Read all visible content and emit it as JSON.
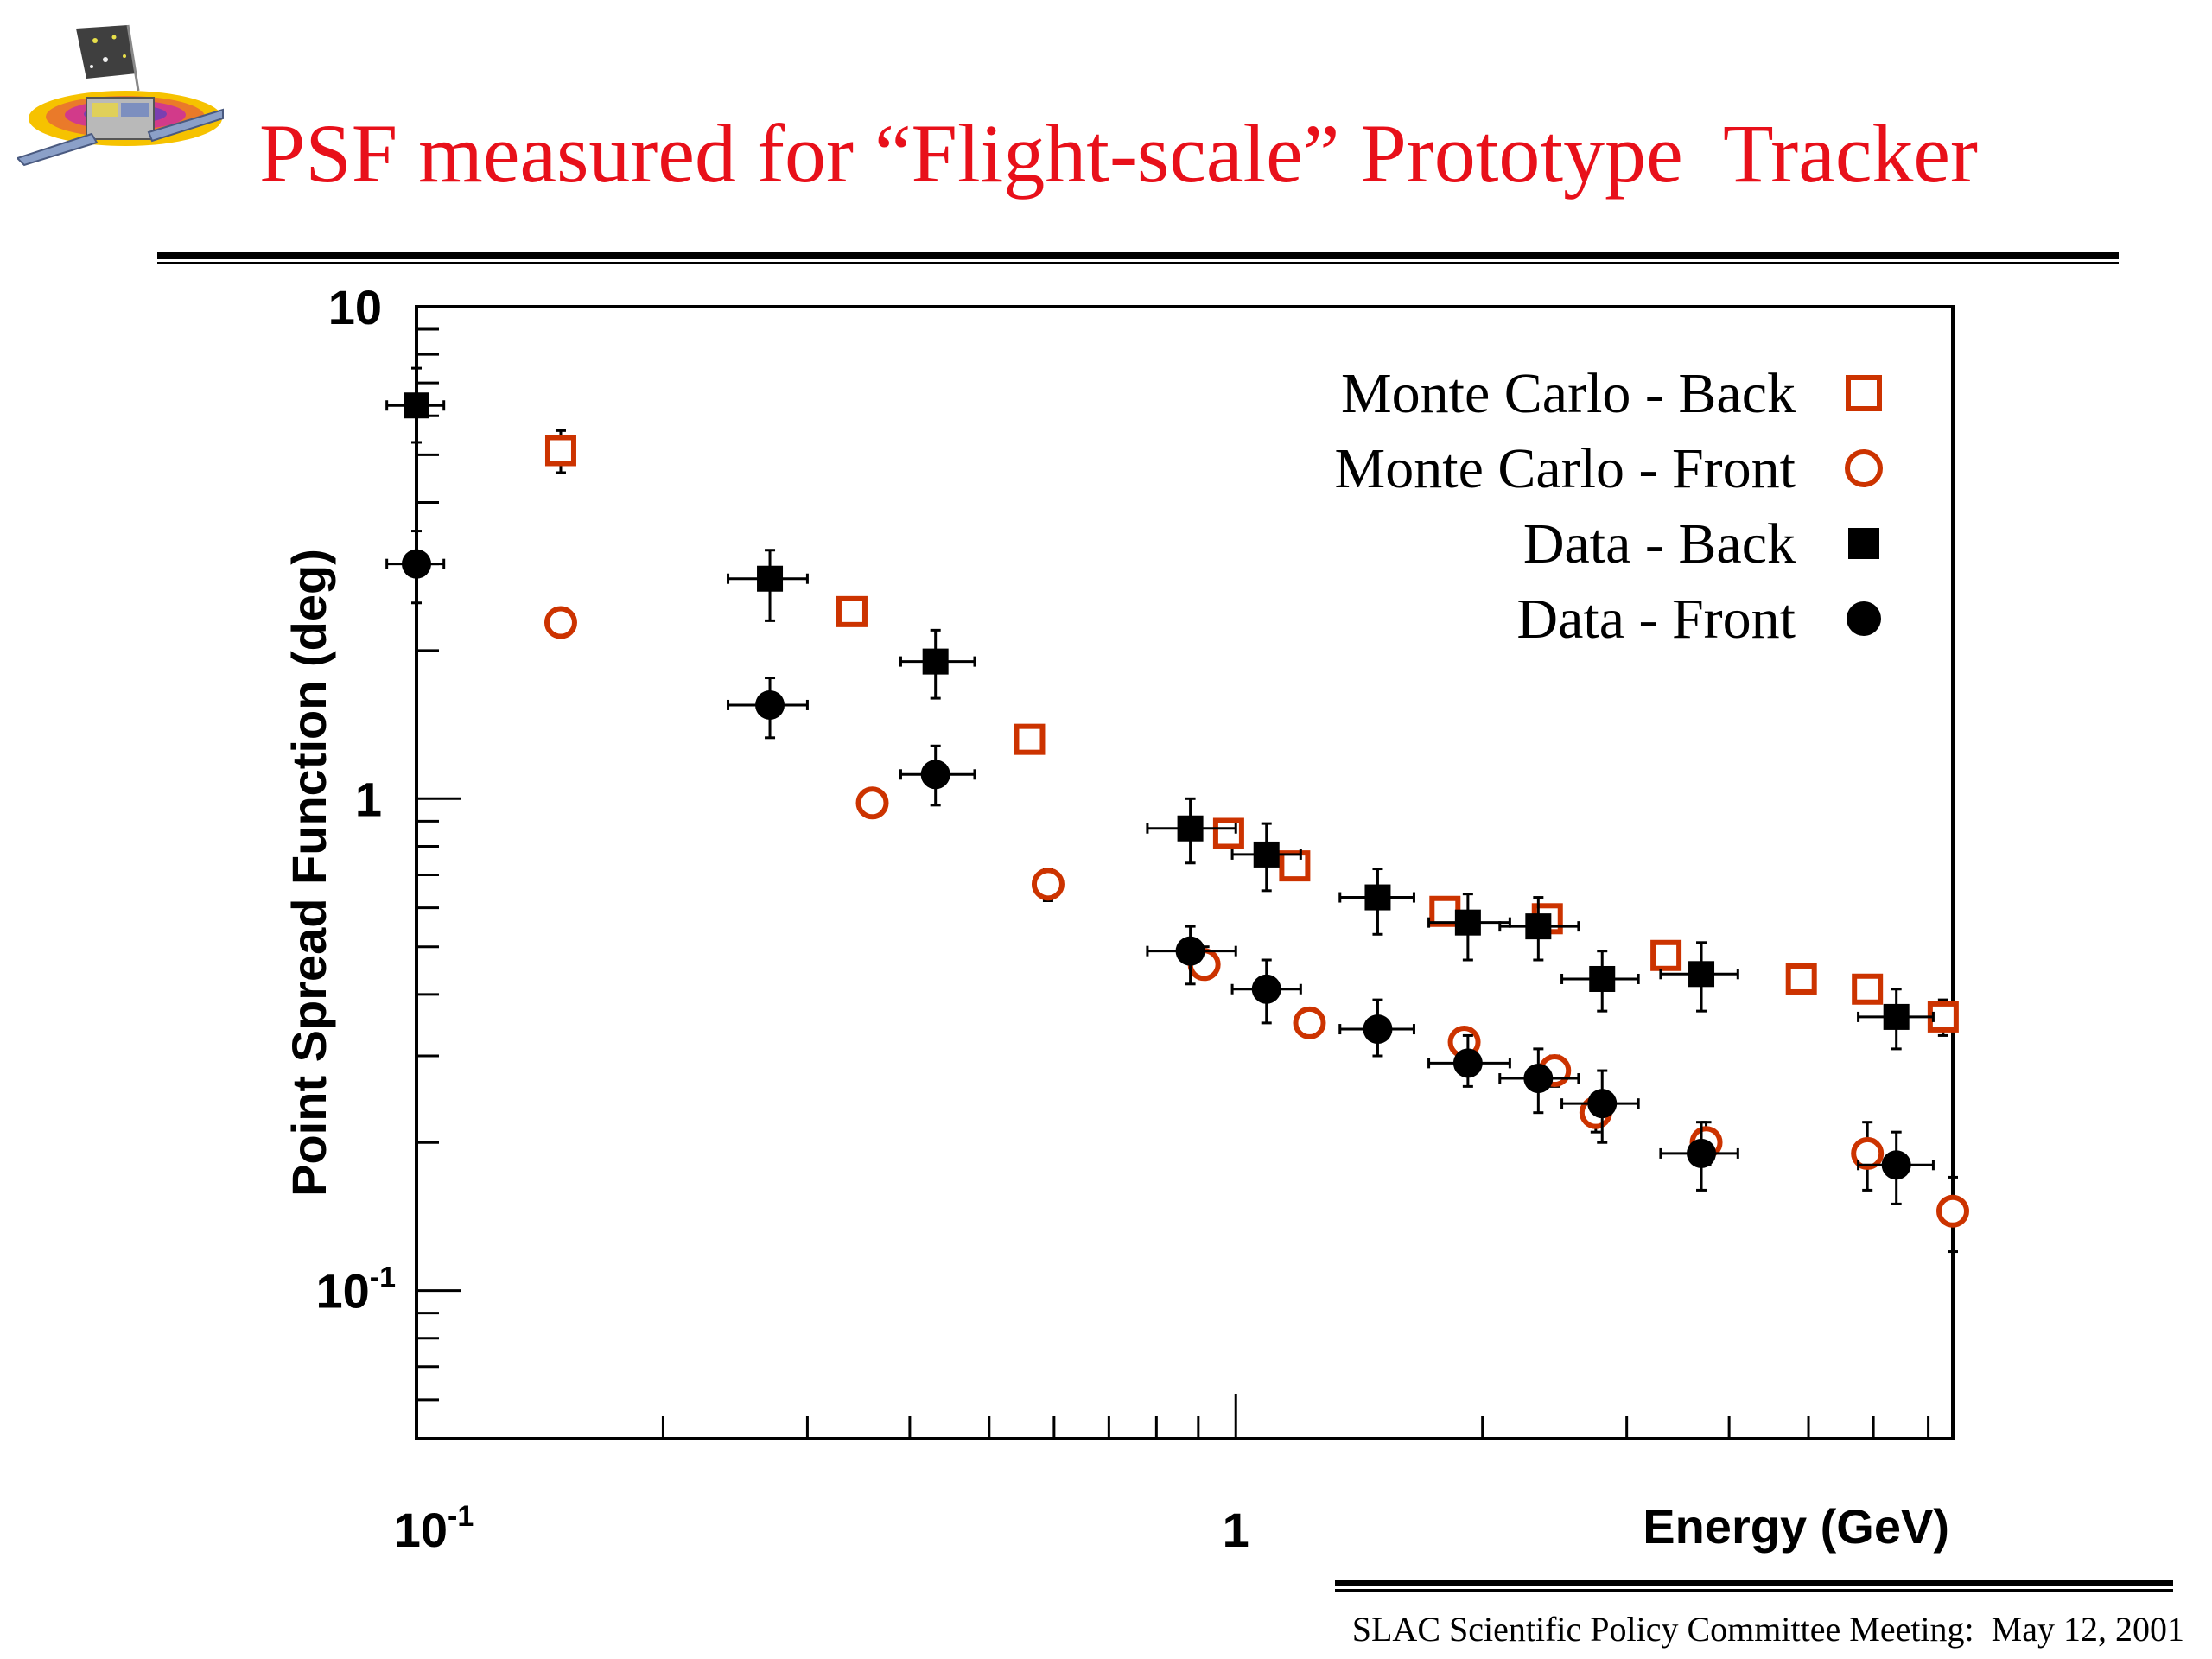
{
  "slide": {
    "title": "PSF measured for “Flight-scale” Prototype  Tracker",
    "footer": "SLAC Scientific Policy Committee Meeting:  May 12, 2001"
  },
  "colors": {
    "title": "#e8101a",
    "mc_marker": "#cc3300",
    "data_marker": "#000000"
  },
  "chart_data": {
    "type": "scatter",
    "xlabel": "Energy (GeV)",
    "ylabel": "Point Spread Function (deg)",
    "xscale": "log",
    "yscale": "log",
    "xlim": [
      0.1,
      7.5
    ],
    "ylim": [
      0.05,
      10
    ],
    "grid": false,
    "legend_position": "top-right",
    "x_tick_labels": [
      {
        "value": 0.1,
        "base": "10",
        "exp": "-1"
      },
      {
        "value": 1,
        "base": "1",
        "exp": ""
      }
    ],
    "y_tick_labels": [
      {
        "value": 10,
        "base": "10",
        "exp": ""
      },
      {
        "value": 1,
        "base": "1",
        "exp": ""
      },
      {
        "value": 0.1,
        "base": "10",
        "exp": "-1"
      }
    ],
    "series": [
      {
        "name": "Monte Carlo - Back",
        "marker": "open-square",
        "color": "#cc3300",
        "points": [
          {
            "x": 0.15,
            "y": 5.1,
            "ylo": 4.6,
            "yhi": 5.6
          },
          {
            "x": 0.34,
            "y": 2.4
          },
          {
            "x": 0.56,
            "y": 1.32
          },
          {
            "x": 0.98,
            "y": 0.85,
            "ylo": 0.8,
            "yhi": 0.9
          },
          {
            "x": 1.18,
            "y": 0.73
          },
          {
            "x": 1.8,
            "y": 0.59
          },
          {
            "x": 2.4,
            "y": 0.57
          },
          {
            "x": 3.35,
            "y": 0.48
          },
          {
            "x": 4.9,
            "y": 0.43
          },
          {
            "x": 5.9,
            "y": 0.41
          },
          {
            "x": 7.3,
            "y": 0.36,
            "ylo": 0.33,
            "yhi": 0.39
          }
        ]
      },
      {
        "name": "Monte Carlo - Front",
        "marker": "open-circle",
        "color": "#cc3300",
        "points": [
          {
            "x": 0.15,
            "y": 2.28
          },
          {
            "x": 0.36,
            "y": 0.98
          },
          {
            "x": 0.59,
            "y": 0.67,
            "ylo": 0.62,
            "yhi": 0.72
          },
          {
            "x": 0.915,
            "y": 0.46,
            "ylo": 0.43,
            "yhi": 0.5
          },
          {
            "x": 1.23,
            "y": 0.35,
            "ylo": 0.33,
            "yhi": 0.37
          },
          {
            "x": 1.9,
            "y": 0.32
          },
          {
            "x": 2.45,
            "y": 0.28,
            "ylo": 0.26,
            "yhi": 0.3
          },
          {
            "x": 2.75,
            "y": 0.23,
            "ylo": 0.21,
            "yhi": 0.25
          },
          {
            "x": 3.75,
            "y": 0.2,
            "ylo": 0.18,
            "yhi": 0.22
          },
          {
            "x": 5.9,
            "y": 0.19,
            "ylo": 0.16,
            "yhi": 0.22
          },
          {
            "x": 7.5,
            "y": 0.145,
            "ylo": 0.12,
            "yhi": 0.17
          }
        ]
      },
      {
        "name": "Data - Back",
        "marker": "filled-square",
        "color": "#000000",
        "points": [
          {
            "x": 0.1,
            "y": 6.3,
            "xlo": 0.092,
            "xhi": 0.108,
            "ylo": 5.3,
            "yhi": 7.5
          },
          {
            "x": 0.27,
            "y": 2.8,
            "xlo": 0.24,
            "xhi": 0.3,
            "ylo": 2.3,
            "yhi": 3.2
          },
          {
            "x": 0.43,
            "y": 1.9,
            "xlo": 0.39,
            "xhi": 0.48,
            "ylo": 1.6,
            "yhi": 2.2
          },
          {
            "x": 0.88,
            "y": 0.87,
            "xlo": 0.78,
            "xhi": 1.0,
            "ylo": 0.74,
            "yhi": 1.0
          },
          {
            "x": 1.09,
            "y": 0.77,
            "xlo": 0.99,
            "xhi": 1.2,
            "ylo": 0.65,
            "yhi": 0.89
          },
          {
            "x": 1.49,
            "y": 0.63,
            "xlo": 1.34,
            "xhi": 1.65,
            "ylo": 0.53,
            "yhi": 0.72
          },
          {
            "x": 1.92,
            "y": 0.56,
            "xlo": 1.72,
            "xhi": 2.16,
            "ylo": 0.47,
            "yhi": 0.64
          },
          {
            "x": 2.34,
            "y": 0.55,
            "xlo": 2.1,
            "xhi": 2.62,
            "ylo": 0.47,
            "yhi": 0.63
          },
          {
            "x": 2.8,
            "y": 0.43,
            "xlo": 2.5,
            "xhi": 3.1,
            "ylo": 0.37,
            "yhi": 0.49
          },
          {
            "x": 3.7,
            "y": 0.44,
            "xlo": 3.3,
            "xhi": 4.1,
            "ylo": 0.37,
            "yhi": 0.51
          },
          {
            "x": 6.4,
            "y": 0.36,
            "xlo": 5.75,
            "xhi": 7.1,
            "ylo": 0.31,
            "yhi": 0.41
          }
        ]
      },
      {
        "name": "Data - Front",
        "marker": "filled-circle",
        "color": "#000000",
        "points": [
          {
            "x": 0.1,
            "y": 3.0,
            "xlo": 0.092,
            "xhi": 0.108,
            "ylo": 2.5,
            "yhi": 3.5
          },
          {
            "x": 0.27,
            "y": 1.55,
            "xlo": 0.24,
            "xhi": 0.3,
            "ylo": 1.33,
            "yhi": 1.76
          },
          {
            "x": 0.43,
            "y": 1.12,
            "xlo": 0.39,
            "xhi": 0.48,
            "ylo": 0.97,
            "yhi": 1.28
          },
          {
            "x": 0.88,
            "y": 0.49,
            "xlo": 0.78,
            "xhi": 1.0,
            "ylo": 0.42,
            "yhi": 0.55
          },
          {
            "x": 1.09,
            "y": 0.41,
            "xlo": 0.99,
            "xhi": 1.2,
            "ylo": 0.35,
            "yhi": 0.47
          },
          {
            "x": 1.49,
            "y": 0.34,
            "xlo": 1.34,
            "xhi": 1.65,
            "ylo": 0.3,
            "yhi": 0.39
          },
          {
            "x": 1.92,
            "y": 0.29,
            "xlo": 1.72,
            "xhi": 2.16,
            "ylo": 0.26,
            "yhi": 0.33
          },
          {
            "x": 2.34,
            "y": 0.27,
            "xlo": 2.1,
            "xhi": 2.62,
            "ylo": 0.23,
            "yhi": 0.31
          },
          {
            "x": 2.8,
            "y": 0.24,
            "xlo": 2.5,
            "xhi": 3.1,
            "ylo": 0.2,
            "yhi": 0.28
          },
          {
            "x": 3.7,
            "y": 0.19,
            "xlo": 3.3,
            "xhi": 4.1,
            "ylo": 0.16,
            "yhi": 0.22
          },
          {
            "x": 6.4,
            "y": 0.18,
            "xlo": 5.75,
            "xhi": 7.1,
            "ylo": 0.15,
            "yhi": 0.21
          }
        ]
      }
    ]
  }
}
